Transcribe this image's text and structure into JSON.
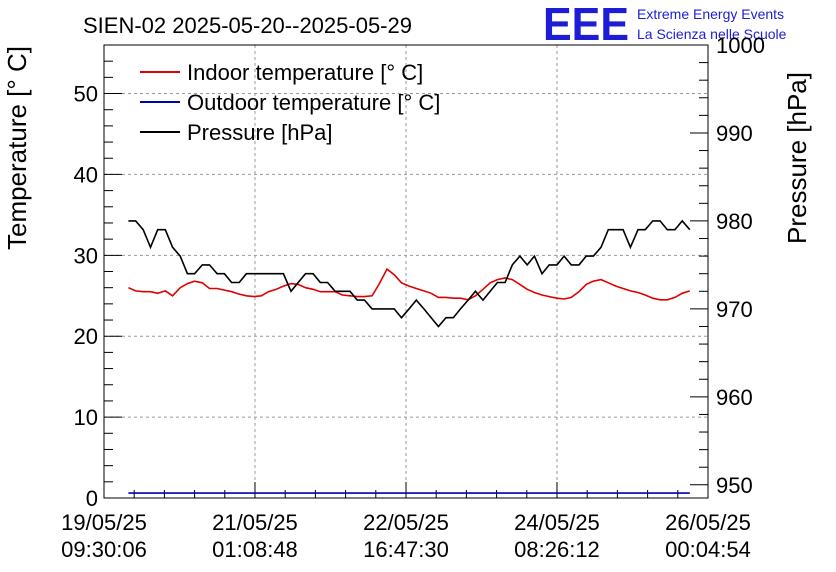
{
  "chart_data": {
    "type": "line",
    "title": "SIEN-02 2025-05-20--2025-05-29",
    "ylabel_left": "Temperature [° C]",
    "ylabel_right": "Pressure [hPa]",
    "left_ylim": [
      0,
      56
    ],
    "right_ylim": [
      948.5,
      1000
    ],
    "left_ticks": [
      0,
      10,
      20,
      30,
      40,
      50
    ],
    "right_ticks": [
      950,
      960,
      970,
      980,
      990,
      1000
    ],
    "x_range_hours": [
      0,
      158.58
    ],
    "x_ticks": [
      {
        "hour": 0,
        "date": "19/05/25",
        "time": "09:30:06"
      },
      {
        "hour": 39.64,
        "date": "21/05/25",
        "time": "01:08:48"
      },
      {
        "hour": 79.29,
        "date": "22/05/25",
        "time": "16:47:30"
      },
      {
        "hour": 118.93,
        "date": "24/05/25",
        "time": "08:26:12"
      },
      {
        "hour": 158.58,
        "date": "26/05/25",
        "time": "00:04:54"
      }
    ],
    "grid": true,
    "legend_position": "top-left",
    "series": [
      {
        "name": "Indoor temperature [° C]",
        "color": "#e00000",
        "axis": "left",
        "x": [
          6.4,
          8.3,
          10.3,
          12.2,
          14.1,
          16.1,
          18.0,
          20.0,
          21.9,
          23.8,
          25.8,
          27.7,
          29.7,
          31.6,
          33.5,
          35.5,
          37.4,
          39.4,
          41.3,
          43.2,
          45.2,
          47.1,
          49.1,
          51.0,
          52.9,
          54.9,
          56.8,
          58.7,
          60.7,
          62.6,
          64.6,
          66.5,
          68.4,
          70.4,
          72.3,
          74.3,
          76.2,
          78.1,
          80.1,
          82.0,
          84.0,
          85.9,
          87.8,
          89.8,
          91.7,
          93.6,
          95.6,
          97.5,
          99.5,
          101.4,
          103.3,
          105.3,
          107.2,
          109.2,
          111.1,
          113.0,
          115.0,
          116.9,
          118.9,
          120.8,
          122.7,
          124.7,
          126.6,
          128.5,
          130.5,
          132.4,
          134.4,
          136.3,
          138.2,
          140.2,
          142.1,
          144.1,
          146.0,
          147.9,
          149.9,
          151.8,
          153.8
        ],
        "y": [
          26.0,
          25.6,
          25.5,
          25.5,
          25.3,
          25.6,
          25.0,
          26.0,
          26.5,
          26.8,
          26.6,
          25.9,
          25.9,
          25.7,
          25.5,
          25.2,
          25.0,
          24.9,
          25.0,
          25.5,
          25.8,
          26.2,
          26.5,
          26.4,
          26.0,
          25.8,
          25.5,
          25.5,
          25.5,
          25.1,
          25.0,
          24.9,
          24.9,
          25.0,
          26.5,
          28.3,
          27.6,
          26.6,
          26.2,
          25.9,
          25.6,
          25.3,
          24.8,
          24.8,
          24.7,
          24.7,
          24.5,
          25.0,
          25.8,
          26.6,
          27.0,
          27.2,
          27.0,
          26.4,
          25.8,
          25.4,
          25.1,
          24.9,
          24.7,
          24.6,
          24.8,
          25.5,
          26.4,
          26.8,
          27.0,
          26.6,
          26.2,
          25.9,
          25.6,
          25.4,
          25.1,
          24.7,
          24.5,
          24.5,
          24.8,
          25.3,
          25.6
        ]
      },
      {
        "name": "Outdoor temperature [° C]",
        "color": "#0000b4",
        "axis": "left",
        "x": [
          6.4,
          153.8
        ],
        "y": [
          0.6,
          0.6
        ]
      },
      {
        "name": "Pressure [hPa]",
        "color": "#000000",
        "axis": "right",
        "x": [
          6.4,
          8.3,
          10.3,
          12.2,
          14.1,
          16.1,
          18.0,
          20.0,
          21.9,
          23.8,
          25.8,
          27.7,
          29.7,
          31.6,
          33.5,
          35.5,
          37.4,
          39.4,
          41.3,
          43.2,
          45.2,
          47.1,
          49.1,
          51.0,
          52.9,
          54.9,
          56.8,
          58.7,
          60.7,
          62.6,
          64.6,
          66.5,
          68.4,
          70.4,
          72.3,
          74.3,
          76.2,
          78.1,
          80.1,
          82.0,
          84.0,
          85.9,
          87.8,
          89.8,
          91.7,
          93.6,
          95.6,
          97.5,
          99.5,
          101.4,
          103.3,
          105.3,
          107.2,
          109.2,
          111.1,
          113.0,
          115.0,
          116.9,
          118.9,
          120.8,
          122.7,
          124.7,
          126.6,
          128.5,
          130.5,
          132.4,
          134.4,
          136.3,
          138.2,
          140.2,
          142.1,
          144.1,
          146.0,
          147.9,
          149.9,
          151.8,
          153.8
        ],
        "y": [
          980.0,
          980.0,
          979.0,
          977.0,
          979.0,
          979.0,
          977.0,
          976.0,
          974.0,
          974.0,
          975.0,
          975.0,
          974.0,
          974.0,
          973.0,
          973.0,
          974.0,
          974.0,
          974.0,
          974.0,
          974.0,
          974.0,
          972.0,
          973.0,
          974.0,
          974.0,
          973.0,
          973.0,
          972.0,
          972.0,
          972.0,
          971.0,
          971.0,
          970.0,
          970.0,
          970.0,
          970.0,
          969.0,
          970.0,
          971.0,
          970.0,
          969.0,
          968.0,
          969.0,
          969.0,
          970.0,
          971.0,
          972.0,
          971.0,
          972.0,
          973.0,
          973.0,
          975.0,
          976.0,
          975.0,
          976.0,
          974.0,
          975.0,
          975.0,
          976.0,
          975.0,
          975.0,
          976.0,
          976.0,
          977.0,
          979.0,
          979.0,
          979.0,
          977.0,
          979.0,
          979.0,
          980.0,
          980.0,
          979.0,
          979.0,
          980.0,
          979.0
        ]
      }
    ]
  },
  "logo": {
    "mark": "EEE",
    "line1": "Extreme Energy Events",
    "line2": "La Scienza nelle Scuole"
  }
}
